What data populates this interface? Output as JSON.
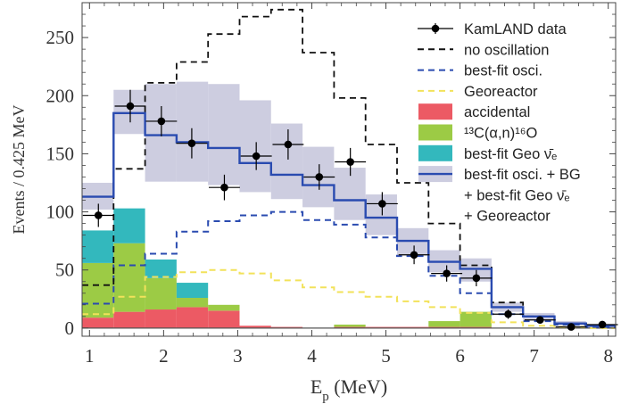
{
  "chart_data": {
    "type": "histogram",
    "xlabel": "E",
    "xlabel_sub": "p",
    "xlabel_unit": " (MeV)",
    "ylabel": "Events / 0.425 MeV",
    "xlim": [
      0.9,
      8.1
    ],
    "ylim": [
      -7,
      280
    ],
    "xticks": [
      1,
      2,
      3,
      4,
      5,
      6,
      7,
      8
    ],
    "yticks": [
      0,
      50,
      100,
      150,
      200,
      250
    ],
    "bin_edges": [
      0.9,
      1.325,
      1.75,
      2.175,
      2.6,
      3.025,
      3.45,
      3.875,
      4.3,
      4.725,
      5.15,
      5.575,
      6.0,
      6.425,
      6.85,
      7.275,
      7.7,
      8.125
    ],
    "colors": {
      "data": "#000000",
      "no_oscillation": "#111111",
      "best_fit_osci": "#2a4bb0",
      "georeactor": "#f2e25a",
      "accidental": "#ec5a64",
      "c13": "#9ccb45",
      "geo": "#33b8bd",
      "band": "#cdcde0",
      "total": "#2a4bb0"
    },
    "series": [
      {
        "name": "KamLAND data",
        "kind": "data",
        "x": [
          1.12,
          1.55,
          1.97,
          2.38,
          2.82,
          3.25,
          3.68,
          4.1,
          4.52,
          4.95,
          5.38,
          5.82,
          6.22,
          6.65,
          7.08,
          7.5,
          7.92
        ],
        "y": [
          97,
          191,
          178,
          159,
          121,
          148,
          158,
          130,
          143,
          107,
          63,
          47,
          43,
          12,
          7,
          1,
          3
        ],
        "yerr": [
          10,
          14,
          13,
          13,
          11,
          12,
          13,
          11,
          12,
          10,
          8,
          7,
          7,
          4,
          3,
          1,
          2
        ],
        "xerr": 0.21
      },
      {
        "name": "no oscillation",
        "kind": "step-dashed",
        "values": [
          37,
          137,
          211,
          229,
          253,
          268,
          274,
          237,
          198,
          158,
          125,
          90,
          54,
          22,
          10,
          4,
          2
        ]
      },
      {
        "name": "best-fit osci.",
        "kind": "step-dashed",
        "values": [
          21,
          54,
          64,
          83,
          92,
          97,
          100,
          93,
          89,
          78,
          62,
          45,
          30,
          12,
          6,
          3,
          1
        ]
      },
      {
        "name": "Georeactor",
        "kind": "step-dashed",
        "values": [
          12,
          27,
          44,
          48,
          50,
          47,
          41,
          35,
          31,
          27,
          23,
          18,
          13,
          5,
          2,
          1,
          0
        ]
      },
      {
        "name": "accidental",
        "kind": "stack",
        "values": [
          9,
          14,
          16,
          18,
          15,
          2,
          1,
          0,
          1,
          1,
          1,
          1,
          1,
          0,
          0,
          0,
          0
        ]
      },
      {
        "name": "¹³C(α,n)¹⁶O",
        "kind": "stack",
        "values": [
          47,
          59,
          27,
          8,
          5,
          0,
          0,
          0,
          2,
          0,
          0,
          5,
          13,
          0,
          0,
          0,
          0
        ]
      },
      {
        "name": "best-fit Geo ν̄ₑ",
        "kind": "stack",
        "values": [
          28,
          30,
          16,
          13,
          0,
          0,
          0,
          0,
          0,
          0,
          0,
          0,
          0,
          0,
          0,
          0,
          0
        ]
      },
      {
        "name": "best-fit osci. + BG + best-fit Geo ν̄ₑ + Georeactor",
        "kind": "step-band",
        "values": [
          113,
          185,
          166,
          160,
          155,
          142,
          132,
          123,
          110,
          95,
          75,
          57,
          51,
          18,
          10,
          4,
          2
        ],
        "low": [
          102,
          167,
          126,
          126,
          123,
          117,
          111,
          104,
          93,
          80,
          63,
          48,
          40,
          14,
          7,
          2,
          0
        ],
        "high": [
          125,
          205,
          210,
          212,
          210,
          196,
          176,
          156,
          138,
          115,
          86,
          67,
          60,
          22,
          13,
          6,
          3
        ]
      }
    ],
    "legend": {
      "placement": "top-right",
      "entries": [
        {
          "label": "KamLAND data"
        },
        {
          "label": "no oscillation"
        },
        {
          "label": "best-fit osci."
        },
        {
          "label": "Georeactor"
        },
        {
          "label": "accidental"
        },
        {
          "label": "¹³C(α,n)¹⁶O"
        },
        {
          "label": "best-fit Geo ν̄ₑ"
        },
        {
          "label": "best-fit osci. + BG"
        },
        {
          "label": "+ best-fit Geo ν̄ₑ"
        },
        {
          "label": "+ Georeactor"
        }
      ]
    }
  }
}
